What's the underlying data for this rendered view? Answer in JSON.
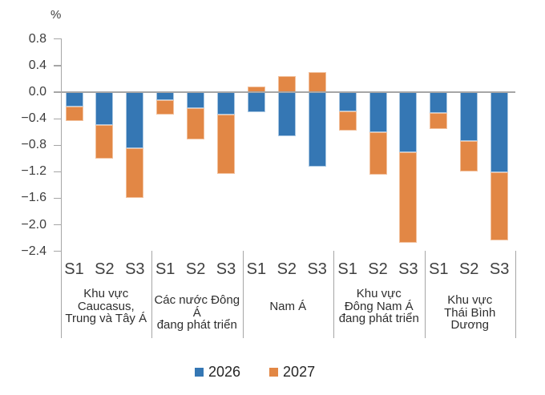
{
  "colors": {
    "axis": "#a6a6a6",
    "text": "#3d3d3d",
    "blue": "#3577b4",
    "blue_border": "#a9c7e2",
    "orange": "#e28745",
    "orange_border": "#f2c09c"
  },
  "chart_data": {
    "type": "bar",
    "stacked": true,
    "title": "",
    "unit": "%",
    "ylabel": "%",
    "xlabel": "",
    "ylim": [
      -2.4,
      0.8
    ],
    "grid": false,
    "legend_position": "bottom",
    "yticks": [
      {
        "label": "0.8",
        "value": 0.8
      },
      {
        "label": "0.4",
        "value": 0.4
      },
      {
        "label": "0.0",
        "value": 0.0
      },
      {
        "label": "−0.4",
        "value": -0.4
      },
      {
        "label": "−0.8",
        "value": -0.8
      },
      {
        "label": "−1.2",
        "value": -1.2
      },
      {
        "label": "−1.6",
        "value": -1.6
      },
      {
        "label": "−2.0",
        "value": -2.0
      },
      {
        "label": "−2.4",
        "value": -2.4
      }
    ],
    "series": [
      {
        "name": "2026",
        "color": "#3577b4",
        "border": "#a9c7e2"
      },
      {
        "name": "2027",
        "color": "#e28745",
        "border": "#f2c09c"
      }
    ],
    "groups": [
      {
        "label_lines": [
          "Khu vực",
          "Caucasus,",
          "Trung và Tây Á"
        ],
        "bars": [
          {
            "label": "S1",
            "values": [
              -0.22,
              -0.21
            ]
          },
          {
            "label": "S2",
            "values": [
              -0.49,
              -0.51
            ]
          },
          {
            "label": "S3",
            "values": [
              -0.84,
              -0.76
            ]
          }
        ]
      },
      {
        "label_lines": [
          "Các nước Đông Á",
          "đang phát triển"
        ],
        "bars": [
          {
            "label": "S1",
            "values": [
              -0.12,
              -0.22
            ]
          },
          {
            "label": "S2",
            "values": [
              -0.24,
              -0.47
            ]
          },
          {
            "label": "S3",
            "values": [
              -0.34,
              -0.89
            ]
          }
        ]
      },
      {
        "label_lines": [
          "Nam Á"
        ],
        "bars": [
          {
            "label": "S1",
            "values": [
              -0.3,
              0.09
            ]
          },
          {
            "label": "S2",
            "values": [
              -0.66,
              0.24
            ]
          },
          {
            "label": "S3",
            "values": [
              -1.12,
              0.3
            ]
          }
        ]
      },
      {
        "label_lines": [
          "Khu vực",
          "Đông Nam Á",
          "đang phát triển"
        ],
        "bars": [
          {
            "label": "S1",
            "values": [
              -0.29,
              -0.29
            ]
          },
          {
            "label": "S2",
            "values": [
              -0.6,
              -0.64
            ]
          },
          {
            "label": "S3",
            "values": [
              -0.9,
              -1.37
            ]
          }
        ]
      },
      {
        "label_lines": [
          "Khu vực",
          "Thái Bình Dương"
        ],
        "bars": [
          {
            "label": "S1",
            "values": [
              -0.31,
              -0.24
            ]
          },
          {
            "label": "S2",
            "values": [
              -0.74,
              -0.46
            ]
          },
          {
            "label": "S3",
            "values": [
              -1.21,
              -1.03
            ]
          }
        ]
      }
    ]
  },
  "legend": {
    "items": [
      {
        "label": "2026",
        "color": "#3577b4"
      },
      {
        "label": "2027",
        "color": "#e28745"
      }
    ]
  }
}
